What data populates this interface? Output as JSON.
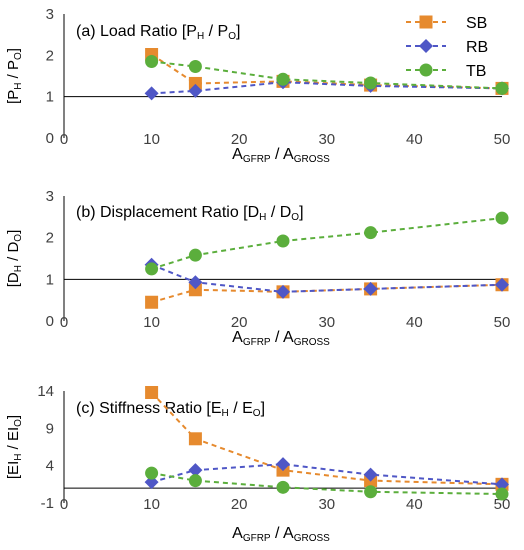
{
  "legend": [
    {
      "key": "SB",
      "label": "SB",
      "color": "#E68A2E",
      "marker": "square"
    },
    {
      "key": "RB",
      "label": "RB",
      "color": "#4F57C6",
      "marker": "diamond"
    },
    {
      "key": "TB",
      "label": "TB",
      "color": "#5BAE3C",
      "marker": "circle"
    }
  ],
  "xaxis": {
    "ticks": [
      "0",
      "10",
      "20",
      "30",
      "40",
      "50"
    ],
    "label_main": "A",
    "label_sub1": "GFRP",
    "label_sep": " / A",
    "label_sub2": "GROSS"
  },
  "chart_data": [
    {
      "type": "line",
      "title": "(a) Load Ratio [P_H / P_O]",
      "title_parts": {
        "t1": "(a) Load Ratio [P",
        "s1": "H",
        "t2": " / P",
        "s2": "O",
        "t3": "]"
      },
      "ylabel_parts": {
        "t1": "[P",
        "s1": "H",
        "t2": " / P",
        "s2": "O",
        "t3": "]"
      },
      "xlim": [
        0,
        50
      ],
      "ylim": [
        0,
        3
      ],
      "yticks": [
        "0",
        "1",
        "2",
        "3"
      ],
      "hline": 1,
      "x": [
        10,
        15,
        25,
        35,
        50
      ],
      "series": [
        {
          "name": "SB",
          "values": [
            2.02,
            1.32,
            1.37,
            1.28,
            1.2
          ]
        },
        {
          "name": "RB",
          "values": [
            1.08,
            1.14,
            1.35,
            1.26,
            1.2
          ]
        },
        {
          "name": "TB",
          "values": [
            1.85,
            1.73,
            1.42,
            1.33,
            1.2
          ]
        }
      ]
    },
    {
      "type": "line",
      "title": "(b) Displacement Ratio [D_H / D_O]",
      "title_parts": {
        "t1": "(b) Displacement Ratio [D",
        "s1": "H",
        "t2": " / D",
        "s2": "O",
        "t3": "]"
      },
      "ylabel_parts": {
        "t1": "[D",
        "s1": "H",
        "t2": " / D",
        "s2": "O",
        "t3": "]"
      },
      "xlim": [
        0,
        50
      ],
      "ylim": [
        0,
        3
      ],
      "yticks": [
        "0",
        "1",
        "2",
        "3"
      ],
      "hline": 1,
      "x": [
        10,
        15,
        25,
        35,
        50
      ],
      "series": [
        {
          "name": "SB",
          "values": [
            0.45,
            0.75,
            0.7,
            0.77,
            0.87
          ]
        },
        {
          "name": "RB",
          "values": [
            1.35,
            0.93,
            0.7,
            0.77,
            0.87
          ]
        },
        {
          "name": "TB",
          "values": [
            1.25,
            1.58,
            1.92,
            2.12,
            2.47
          ]
        }
      ]
    },
    {
      "type": "line",
      "title": "(c) Stiffness Ratio [E_H / E_O]",
      "title_parts": {
        "t1": "(c) Stiffness Ratio [E",
        "s1": "H",
        "t2": " / E",
        "s2": "O",
        "t3": "]"
      },
      "ylabel_parts": {
        "t1": "[EI",
        "s1": "H",
        "t2": " / EI",
        "s2": "O",
        "t3": "]"
      },
      "xlim": [
        0,
        50
      ],
      "ylim": [
        -1,
        14
      ],
      "yticks": [
        "-1",
        "4",
        "9",
        "14"
      ],
      "yticks_values": [
        -1,
        4,
        9,
        14
      ],
      "hline": 1,
      "x": [
        10,
        15,
        25,
        35,
        50
      ],
      "series": [
        {
          "name": "SB",
          "values": [
            13.8,
            7.6,
            3.4,
            2.0,
            1.5
          ]
        },
        {
          "name": "RB",
          "values": [
            1.8,
            3.4,
            4.2,
            2.8,
            1.5
          ]
        },
        {
          "name": "TB",
          "values": [
            3.0,
            2.0,
            1.1,
            0.5,
            0.2
          ]
        }
      ]
    }
  ]
}
